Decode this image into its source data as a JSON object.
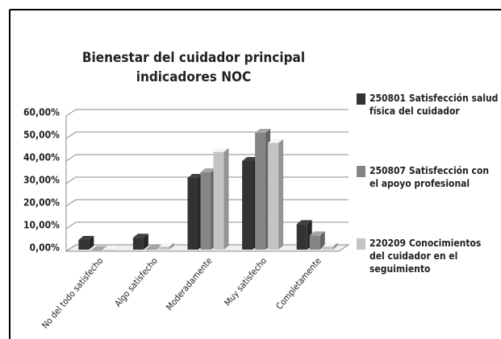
{
  "chart_data": {
    "type": "bar3d",
    "title": [
      "Bienestar del cuidador principal",
      "indicadores NOC"
    ],
    "categories": [
      "No del todo satisfecho",
      "Algo satisfecho",
      "Moderadamente",
      "Muy satisfecho",
      "Completamente"
    ],
    "series": [
      {
        "name": "250801 Satisfección salud física del cuidador",
        "color": "#333333",
        "values": [
          5,
          6,
          32.5,
          40,
          12
        ]
      },
      {
        "name": "250807 Satisfección con el apoyo profesional",
        "color": "#858585",
        "values": [
          0.5,
          1,
          35,
          52.5,
          7
        ]
      },
      {
        "name": "220209 Conocimientos del cuidador en el seguimiento",
        "color": "#c4c4c4",
        "values": [
          0.5,
          2,
          44,
          48,
          2
        ]
      }
    ],
    "ylim": [
      0,
      60
    ],
    "yticks": [
      {
        "value": 0,
        "label": "0,00%"
      },
      {
        "value": 10,
        "label": "10,00%"
      },
      {
        "value": 20,
        "label": "20,00%"
      },
      {
        "value": 30,
        "label": "30,00%"
      },
      {
        "value": 40,
        "label": "40,00%"
      },
      {
        "value": 50,
        "label": "50,00%"
      },
      {
        "value": 60,
        "label": "60,00%"
      }
    ],
    "grid": true,
    "legend": "right"
  }
}
